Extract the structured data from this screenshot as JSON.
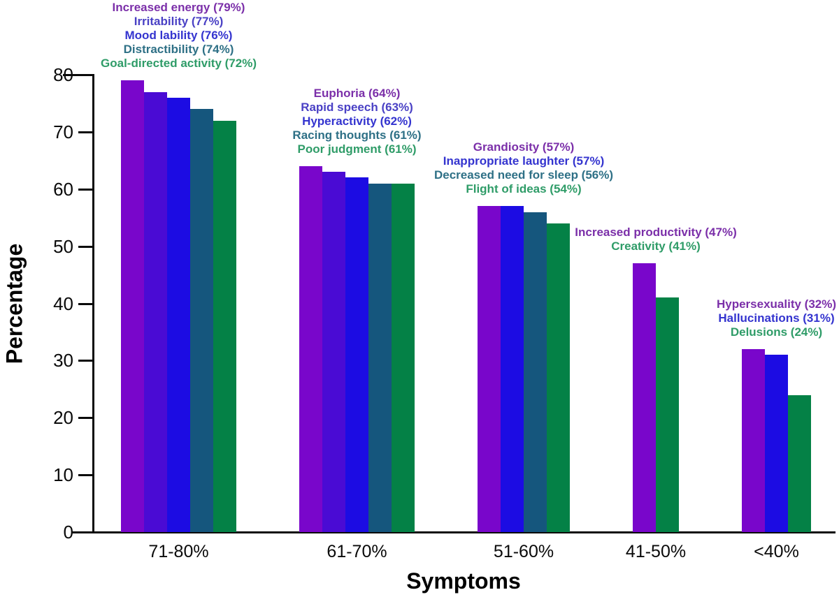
{
  "chart_data": {
    "type": "bar",
    "title": "",
    "xlabel": "Symptoms",
    "ylabel": "Percentage",
    "ylim": [
      0,
      80
    ],
    "y_ticks": [
      0,
      10,
      20,
      30,
      40,
      50,
      60,
      70,
      80
    ],
    "grid": false,
    "legend": "none (labels annotated above each bar group)",
    "annotation_format": "{label} ({value}%)",
    "colors": {
      "purple": {
        "bar": "#7906CB",
        "text": "#7B2FA9"
      },
      "indigo": {
        "bar": "#4A0BD4",
        "text": "#4A41C5"
      },
      "blue": {
        "bar": "#1C0CE3",
        "text": "#3434CF"
      },
      "teal": {
        "bar": "#15567D",
        "text": "#2E7086"
      },
      "green": {
        "bar": "#048146",
        "text": "#2F9C68"
      }
    },
    "groups": [
      {
        "category": "71-80%",
        "bars": [
          {
            "label": "Increased energy",
            "value": 79,
            "color": "purple"
          },
          {
            "label": "Irritability",
            "value": 77,
            "color": "indigo"
          },
          {
            "label": "Mood lability",
            "value": 76,
            "color": "blue"
          },
          {
            "label": "Distractibility",
            "value": 74,
            "color": "teal"
          },
          {
            "label": "Goal-directed activity",
            "value": 72,
            "color": "green"
          }
        ]
      },
      {
        "category": "61-70%",
        "bars": [
          {
            "label": "Euphoria",
            "value": 64,
            "color": "purple"
          },
          {
            "label": "Rapid speech",
            "value": 63,
            "color": "indigo"
          },
          {
            "label": "Hyperactivity",
            "value": 62,
            "color": "blue"
          },
          {
            "label": "Racing thoughts",
            "value": 61,
            "color": "teal"
          },
          {
            "label": "Poor judgment",
            "value": 61,
            "color": "green"
          }
        ]
      },
      {
        "category": "51-60%",
        "bars": [
          {
            "label": "Grandiosity",
            "value": 57,
            "color": "purple"
          },
          {
            "label": "Inappropriate laughter",
            "value": 57,
            "color": "blue"
          },
          {
            "label": "Decreased need for sleep",
            "value": 56,
            "color": "teal"
          },
          {
            "label": "Flight of ideas",
            "value": 54,
            "color": "green"
          }
        ]
      },
      {
        "category": "41-50%",
        "bars": [
          {
            "label": "Increased productivity",
            "value": 47,
            "color": "purple"
          },
          {
            "label": "Creativity",
            "value": 41,
            "color": "green"
          }
        ]
      },
      {
        "category": "<40%",
        "bars": [
          {
            "label": "Hypersexuality",
            "value": 32,
            "color": "purple"
          },
          {
            "label": "Hallucinations",
            "value": 31,
            "color": "blue"
          },
          {
            "label": "Delusions",
            "value": 24,
            "color": "green"
          }
        ]
      }
    ]
  }
}
